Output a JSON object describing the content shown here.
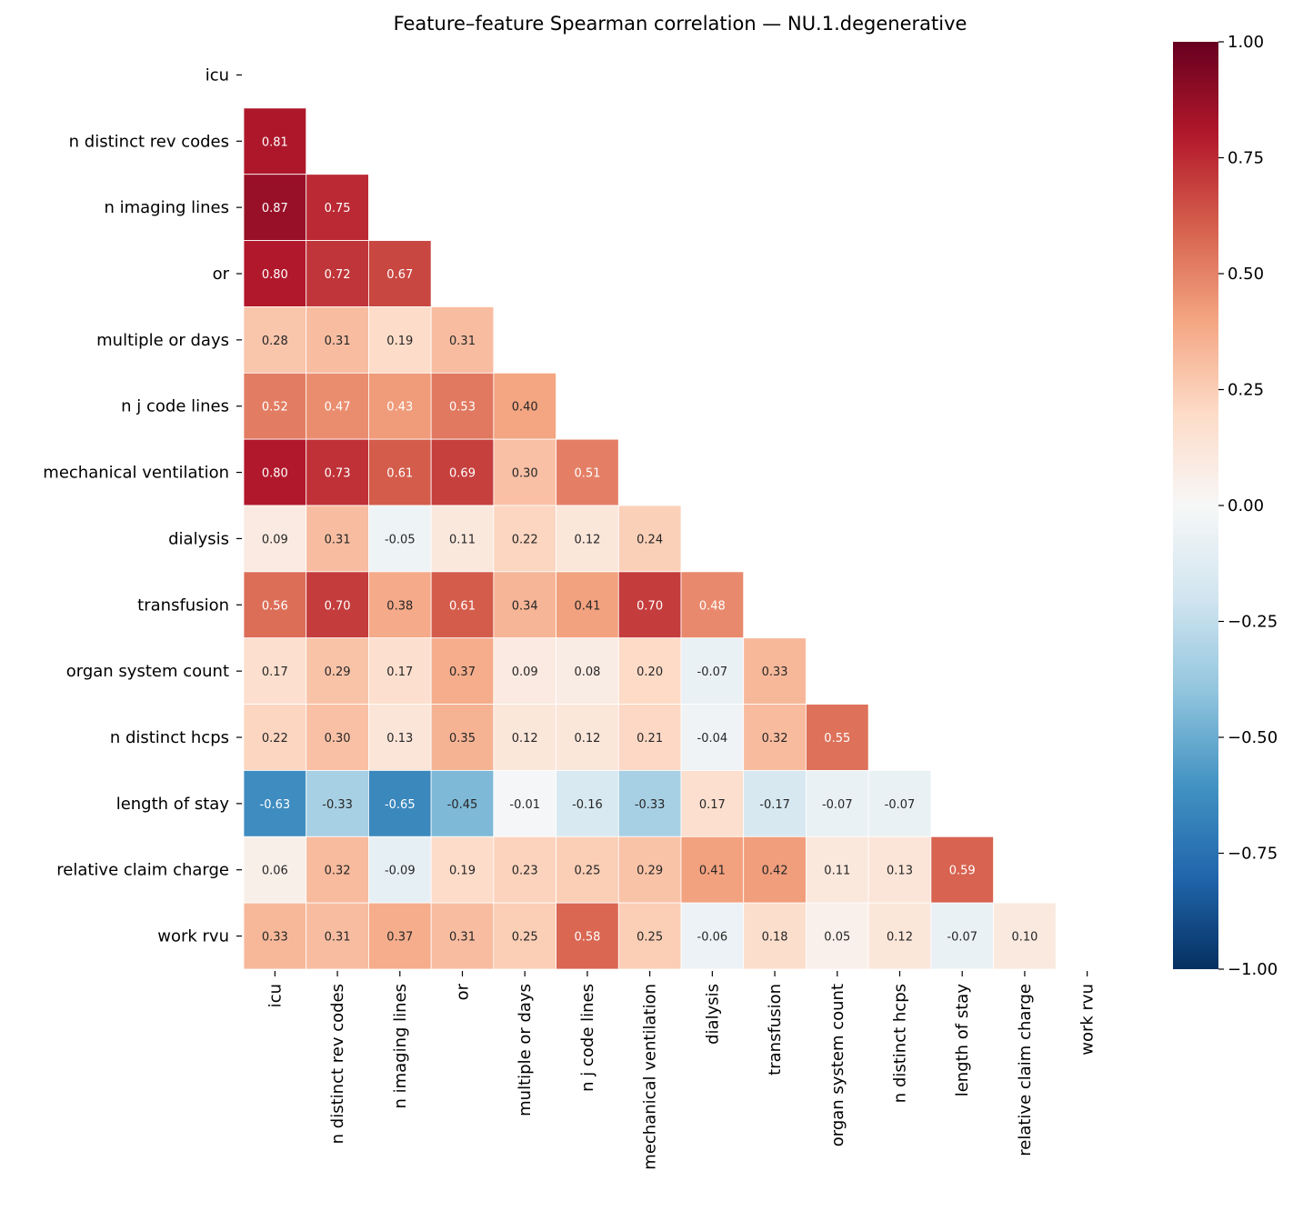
{
  "chart_data": {
    "type": "heatmap",
    "title": "Feature–feature Spearman correlation — NU.1.degenerative",
    "labels": [
      "icu",
      "n distinct rev codes",
      "n imaging lines",
      "or",
      "multiple or days",
      "n j code lines",
      "mechanical ventilation",
      "dialysis",
      "transfusion",
      "organ system count",
      "n distinct hcps",
      "length of stay",
      "relative claim charge",
      "work rvu"
    ],
    "mask": "upper-triangle-including-diagonal",
    "values": [
      [],
      [
        0.81
      ],
      [
        0.87,
        0.75
      ],
      [
        0.8,
        0.72,
        0.67
      ],
      [
        0.28,
        0.31,
        0.19,
        0.31
      ],
      [
        0.52,
        0.47,
        0.43,
        0.53,
        0.4
      ],
      [
        0.8,
        0.73,
        0.61,
        0.69,
        0.3,
        0.51
      ],
      [
        0.09,
        0.31,
        -0.05,
        0.11,
        0.22,
        0.12,
        0.24
      ],
      [
        0.56,
        0.7,
        0.38,
        0.61,
        0.34,
        0.41,
        0.7,
        0.48
      ],
      [
        0.17,
        0.29,
        0.17,
        0.37,
        0.09,
        0.08,
        0.2,
        -0.07,
        0.33
      ],
      [
        0.22,
        0.3,
        0.13,
        0.35,
        0.12,
        0.12,
        0.21,
        -0.04,
        0.32,
        0.55
      ],
      [
        -0.63,
        -0.33,
        -0.65,
        -0.45,
        -0.01,
        -0.16,
        -0.33,
        0.17,
        -0.17,
        -0.07,
        -0.07
      ],
      [
        0.06,
        0.32,
        -0.09,
        0.19,
        0.23,
        0.25,
        0.29,
        0.41,
        0.42,
        0.11,
        0.13,
        0.59
      ],
      [
        0.33,
        0.31,
        0.37,
        0.31,
        0.25,
        0.58,
        0.25,
        -0.06,
        0.18,
        0.05,
        0.12,
        -0.07,
        0.1
      ]
    ],
    "colormap": "RdBu_r",
    "vmin": -1,
    "vmax": 1,
    "colorbar_ticks": [
      "1.00",
      "0.75",
      "0.50",
      "0.25",
      "0.00",
      "−0.25",
      "−0.50",
      "−0.75",
      "−1.00"
    ],
    "colorbar_tick_values": [
      1,
      0.75,
      0.5,
      0.25,
      0,
      -0.25,
      -0.5,
      -0.75,
      -1
    ],
    "colormap_stops": [
      "#053061",
      "#2166ac",
      "#4393c3",
      "#92c5de",
      "#d1e5f0",
      "#f7f7f7",
      "#fddbc7",
      "#f4a582",
      "#d6604d",
      "#b2182b",
      "#67001f"
    ],
    "legend": "colorbar-right",
    "grid": false
  }
}
